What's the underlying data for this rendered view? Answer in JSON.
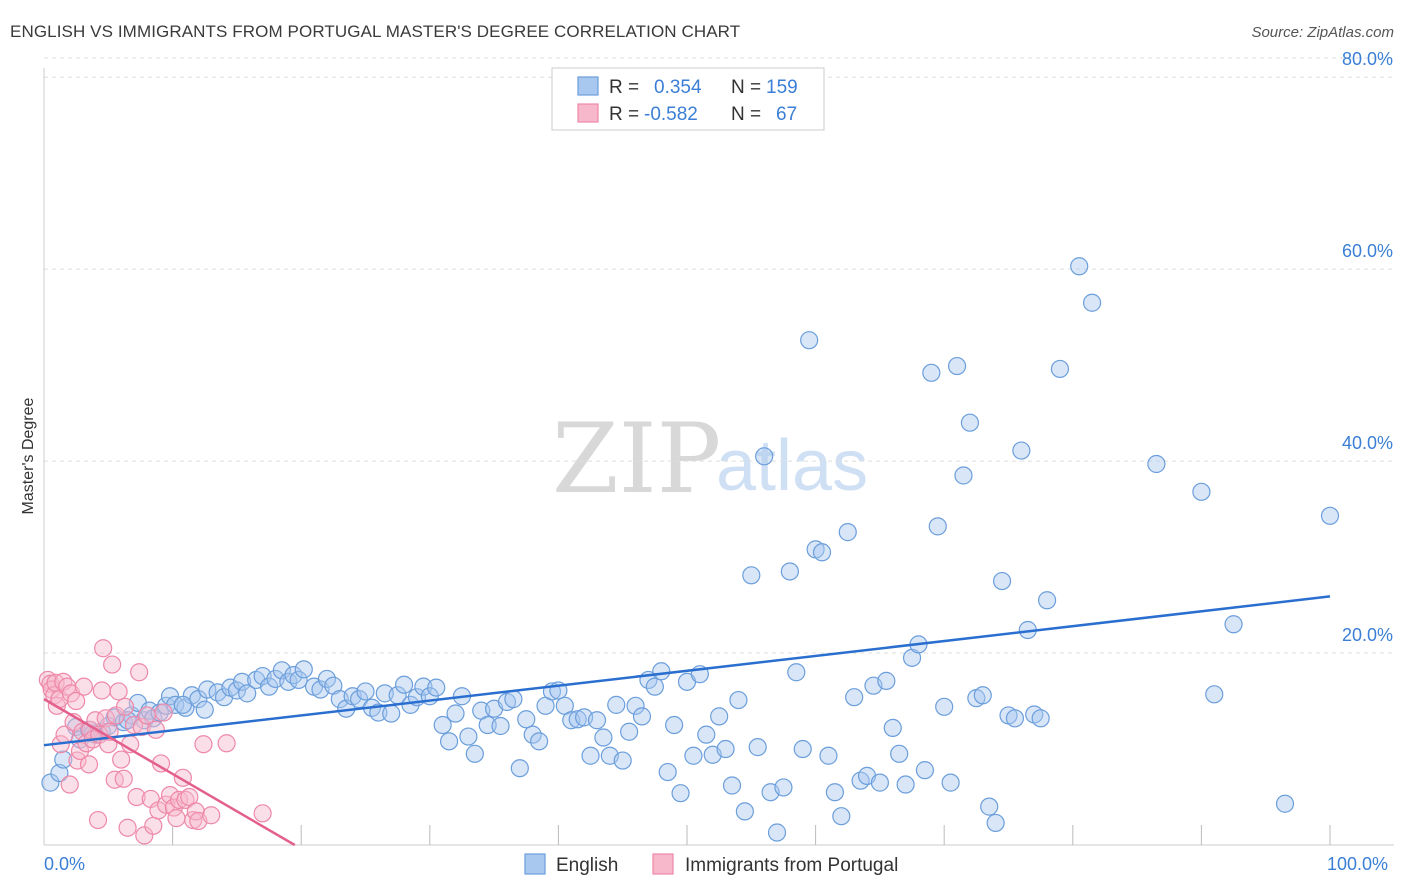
{
  "title": "ENGLISH VS IMMIGRANTS FROM PORTUGAL MASTER'S DEGREE CORRELATION CHART",
  "source": "Source: ZipAtlas.com",
  "watermark": {
    "zip": "ZIP",
    "atlas": "atlas"
  },
  "legend_top": {
    "rows": [
      {
        "r_label": "R = ",
        "r_value": "0.354",
        "n_label": "N = ",
        "n_value": "159"
      },
      {
        "r_label": "R = ",
        "r_value": "-0.582",
        "n_label": "N = ",
        "n_value": "67"
      }
    ]
  },
  "colors": {
    "english_fill": "#a9c8f0",
    "english_stroke": "#6b9edb",
    "english_line": "#2a6fcf",
    "portugal_fill": "#f7b8cc",
    "portugal_stroke": "#ee88a8",
    "portugal_line": "#e35f8c"
  },
  "chart_data": {
    "type": "scatter",
    "title": "ENGLISH VS IMMIGRANTS FROM PORTUGAL MASTER'S DEGREE CORRELATION CHART",
    "xlabel": "",
    "ylabel": "Master's Degree",
    "xlim": [
      0,
      100
    ],
    "ylim": [
      0,
      82
    ],
    "x_tick_labels": [
      "0.0%",
      "100.0%"
    ],
    "y_tick_labels": [
      "20.0%",
      "40.0%",
      "60.0%",
      "80.0%"
    ],
    "y_ticks": [
      20,
      40,
      60,
      80
    ],
    "grid": true,
    "legend": [
      "English",
      "Immigrants from Portugal"
    ],
    "series": [
      {
        "name": "English",
        "r": 0.354,
        "n": 159,
        "trend": {
          "x": [
            0,
            100
          ],
          "y": [
            10.4,
            25.9
          ]
        },
        "points": [
          [
            0.5,
            6.5
          ],
          [
            1.2,
            7.5
          ],
          [
            1.5,
            8.9
          ],
          [
            2.5,
            12.3
          ],
          [
            2.8,
            11.0
          ],
          [
            3.5,
            12.0
          ],
          [
            4.0,
            11.5
          ],
          [
            4.5,
            11.8
          ],
          [
            5.0,
            12.4
          ],
          [
            5.5,
            13.3
          ],
          [
            6.2,
            12.8
          ],
          [
            6.8,
            13.5
          ],
          [
            7.3,
            14.8
          ],
          [
            7.8,
            13.0
          ],
          [
            8.2,
            14.0
          ],
          [
            8.5,
            13.2
          ],
          [
            9.0,
            13.8
          ],
          [
            9.5,
            14.5
          ],
          [
            9.8,
            15.5
          ],
          [
            10.2,
            14.6
          ],
          [
            11.0,
            14.3
          ],
          [
            11.5,
            15.6
          ],
          [
            12.0,
            15.2
          ],
          [
            12.5,
            14.1
          ],
          [
            12.7,
            16.2
          ],
          [
            13.5,
            15.9
          ],
          [
            14.0,
            15.4
          ],
          [
            14.5,
            16.4
          ],
          [
            15.0,
            16.1
          ],
          [
            15.4,
            17.0
          ],
          [
            15.8,
            15.8
          ],
          [
            16.5,
            17.2
          ],
          [
            17.0,
            17.6
          ],
          [
            17.5,
            16.5
          ],
          [
            18.0,
            17.3
          ],
          [
            18.5,
            18.2
          ],
          [
            19.0,
            17.0
          ],
          [
            19.4,
            17.7
          ],
          [
            19.8,
            17.2
          ],
          [
            20.2,
            18.3
          ],
          [
            21.0,
            16.5
          ],
          [
            21.5,
            16.2
          ],
          [
            22.0,
            17.3
          ],
          [
            22.5,
            16.6
          ],
          [
            23.0,
            15.2
          ],
          [
            23.5,
            14.2
          ],
          [
            24.0,
            15.5
          ],
          [
            24.5,
            15.2
          ],
          [
            25.0,
            16.0
          ],
          [
            25.5,
            14.3
          ],
          [
            26.0,
            13.8
          ],
          [
            26.5,
            15.8
          ],
          [
            27.0,
            13.7
          ],
          [
            27.5,
            15.6
          ],
          [
            28.0,
            16.7
          ],
          [
            28.5,
            14.6
          ],
          [
            29.0,
            15.4
          ],
          [
            29.5,
            16.5
          ],
          [
            30.0,
            15.5
          ],
          [
            30.5,
            16.4
          ],
          [
            31.0,
            12.5
          ],
          [
            31.5,
            10.8
          ],
          [
            32.0,
            13.7
          ],
          [
            32.5,
            15.5
          ],
          [
            33.0,
            11.3
          ],
          [
            33.5,
            9.5
          ],
          [
            34.0,
            14.0
          ],
          [
            34.5,
            12.5
          ],
          [
            35.0,
            14.2
          ],
          [
            35.5,
            12.4
          ],
          [
            36.0,
            14.9
          ],
          [
            36.5,
            15.2
          ],
          [
            37.0,
            8.0
          ],
          [
            37.5,
            13.1
          ],
          [
            38.0,
            11.5
          ],
          [
            38.5,
            10.8
          ],
          [
            39.0,
            14.5
          ],
          [
            39.5,
            16.0
          ],
          [
            40.0,
            16.1
          ],
          [
            40.5,
            14.5
          ],
          [
            41.0,
            13.0
          ],
          [
            41.5,
            13.1
          ],
          [
            42.0,
            13.3
          ],
          [
            42.5,
            9.3
          ],
          [
            43.0,
            13.0
          ],
          [
            43.5,
            11.2
          ],
          [
            44.0,
            9.3
          ],
          [
            44.5,
            14.6
          ],
          [
            45.0,
            8.8
          ],
          [
            45.5,
            11.8
          ],
          [
            46.0,
            14.5
          ],
          [
            46.5,
            13.4
          ],
          [
            47.0,
            17.2
          ],
          [
            47.5,
            16.5
          ],
          [
            48.0,
            18.1
          ],
          [
            48.5,
            7.6
          ],
          [
            49.0,
            12.5
          ],
          [
            49.5,
            5.4
          ],
          [
            50.0,
            17.0
          ],
          [
            50.5,
            9.3
          ],
          [
            51.0,
            17.8
          ],
          [
            51.5,
            11.5
          ],
          [
            52.0,
            9.4
          ],
          [
            52.5,
            13.4
          ],
          [
            53.0,
            10.0
          ],
          [
            53.5,
            6.2
          ],
          [
            54.0,
            15.1
          ],
          [
            54.5,
            3.5
          ],
          [
            55.0,
            28.1
          ],
          [
            55.5,
            10.2
          ],
          [
            56.0,
            40.5
          ],
          [
            56.5,
            5.5
          ],
          [
            57.0,
            1.3
          ],
          [
            57.5,
            6.0
          ],
          [
            58.0,
            28.5
          ],
          [
            58.5,
            18.0
          ],
          [
            59.0,
            10.0
          ],
          [
            59.5,
            52.6
          ],
          [
            60.0,
            30.8
          ],
          [
            60.5,
            30.5
          ],
          [
            61.0,
            9.3
          ],
          [
            61.5,
            5.5
          ],
          [
            62.0,
            3.0
          ],
          [
            62.5,
            32.6
          ],
          [
            63.0,
            15.4
          ],
          [
            63.5,
            6.7
          ],
          [
            64.0,
            7.2
          ],
          [
            64.5,
            16.6
          ],
          [
            65.0,
            6.5
          ],
          [
            65.5,
            17.1
          ],
          [
            66.0,
            12.2
          ],
          [
            66.5,
            9.5
          ],
          [
            67.0,
            6.3
          ],
          [
            67.5,
            19.5
          ],
          [
            68.0,
            20.9
          ],
          [
            68.5,
            7.8
          ],
          [
            69.0,
            49.2
          ],
          [
            69.5,
            33.2
          ],
          [
            70.0,
            14.4
          ],
          [
            70.5,
            6.5
          ],
          [
            71.0,
            49.9
          ],
          [
            71.5,
            38.5
          ],
          [
            72.0,
            44.0
          ],
          [
            72.5,
            15.3
          ],
          [
            73.0,
            15.6
          ],
          [
            73.5,
            4.0
          ],
          [
            74.0,
            2.3
          ],
          [
            74.5,
            27.5
          ],
          [
            75.0,
            13.5
          ],
          [
            75.5,
            13.2
          ],
          [
            76.0,
            41.1
          ],
          [
            76.5,
            22.4
          ],
          [
            77.0,
            13.6
          ],
          [
            77.5,
            13.2
          ],
          [
            78.0,
            25.5
          ],
          [
            79.0,
            49.6
          ],
          [
            80.5,
            60.3
          ],
          [
            81.5,
            56.5
          ],
          [
            86.5,
            39.7
          ],
          [
            90.0,
            36.8
          ],
          [
            91.0,
            15.7
          ],
          [
            92.5,
            23.0
          ],
          [
            96.5,
            4.3
          ],
          [
            100.0,
            34.3
          ],
          [
            3.8,
            11.6
          ],
          [
            6.5,
            13.0
          ],
          [
            10.8,
            14.6
          ]
        ]
      },
      {
        "name": "Immigrants from Portugal",
        "r": -0.582,
        "n": 67,
        "trend": {
          "x": [
            0,
            19.5
          ],
          "y": [
            15.2,
            0
          ]
        },
        "points": [
          [
            0.3,
            17.2
          ],
          [
            0.5,
            16.8
          ],
          [
            0.6,
            16.2
          ],
          [
            0.8,
            15.6
          ],
          [
            0.9,
            16.9
          ],
          [
            1.0,
            14.5
          ],
          [
            1.2,
            15.2
          ],
          [
            1.3,
            10.5
          ],
          [
            1.5,
            17.0
          ],
          [
            1.6,
            11.5
          ],
          [
            1.8,
            16.5
          ],
          [
            2.0,
            6.3
          ],
          [
            2.1,
            15.8
          ],
          [
            2.3,
            12.8
          ],
          [
            2.5,
            15.0
          ],
          [
            2.6,
            8.8
          ],
          [
            2.8,
            9.8
          ],
          [
            3.0,
            11.8
          ],
          [
            3.1,
            16.5
          ],
          [
            3.3,
            10.6
          ],
          [
            3.5,
            8.4
          ],
          [
            3.6,
            12.0
          ],
          [
            3.8,
            11.0
          ],
          [
            4.0,
            13.0
          ],
          [
            4.2,
            2.6
          ],
          [
            4.3,
            11.5
          ],
          [
            4.5,
            16.1
          ],
          [
            4.6,
            20.5
          ],
          [
            4.8,
            13.2
          ],
          [
            5.0,
            10.5
          ],
          [
            5.1,
            11.8
          ],
          [
            5.3,
            18.8
          ],
          [
            5.5,
            6.8
          ],
          [
            5.6,
            13.5
          ],
          [
            5.8,
            16.0
          ],
          [
            6.0,
            8.9
          ],
          [
            6.2,
            6.9
          ],
          [
            6.3,
            14.4
          ],
          [
            6.5,
            1.8
          ],
          [
            6.7,
            10.5
          ],
          [
            7.0,
            12.5
          ],
          [
            7.2,
            5.0
          ],
          [
            7.4,
            18.0
          ],
          [
            7.6,
            12.3
          ],
          [
            7.8,
            1.0
          ],
          [
            8.0,
            13.5
          ],
          [
            8.3,
            4.8
          ],
          [
            8.5,
            2.0
          ],
          [
            8.7,
            12.0
          ],
          [
            8.9,
            3.6
          ],
          [
            9.1,
            8.5
          ],
          [
            9.3,
            13.8
          ],
          [
            9.5,
            4.2
          ],
          [
            9.8,
            5.2
          ],
          [
            10.1,
            3.9
          ],
          [
            10.3,
            2.8
          ],
          [
            10.5,
            4.7
          ],
          [
            10.8,
            7.0
          ],
          [
            11.0,
            4.7
          ],
          [
            11.3,
            5.0
          ],
          [
            11.6,
            2.6
          ],
          [
            11.8,
            3.5
          ],
          [
            12.0,
            2.5
          ],
          [
            12.4,
            10.5
          ],
          [
            13.0,
            3.1
          ],
          [
            14.2,
            10.6
          ],
          [
            17.0,
            3.3
          ]
        ]
      }
    ]
  },
  "legend_bottom": [
    {
      "label": "English"
    },
    {
      "label": "Immigrants from Portugal"
    }
  ]
}
